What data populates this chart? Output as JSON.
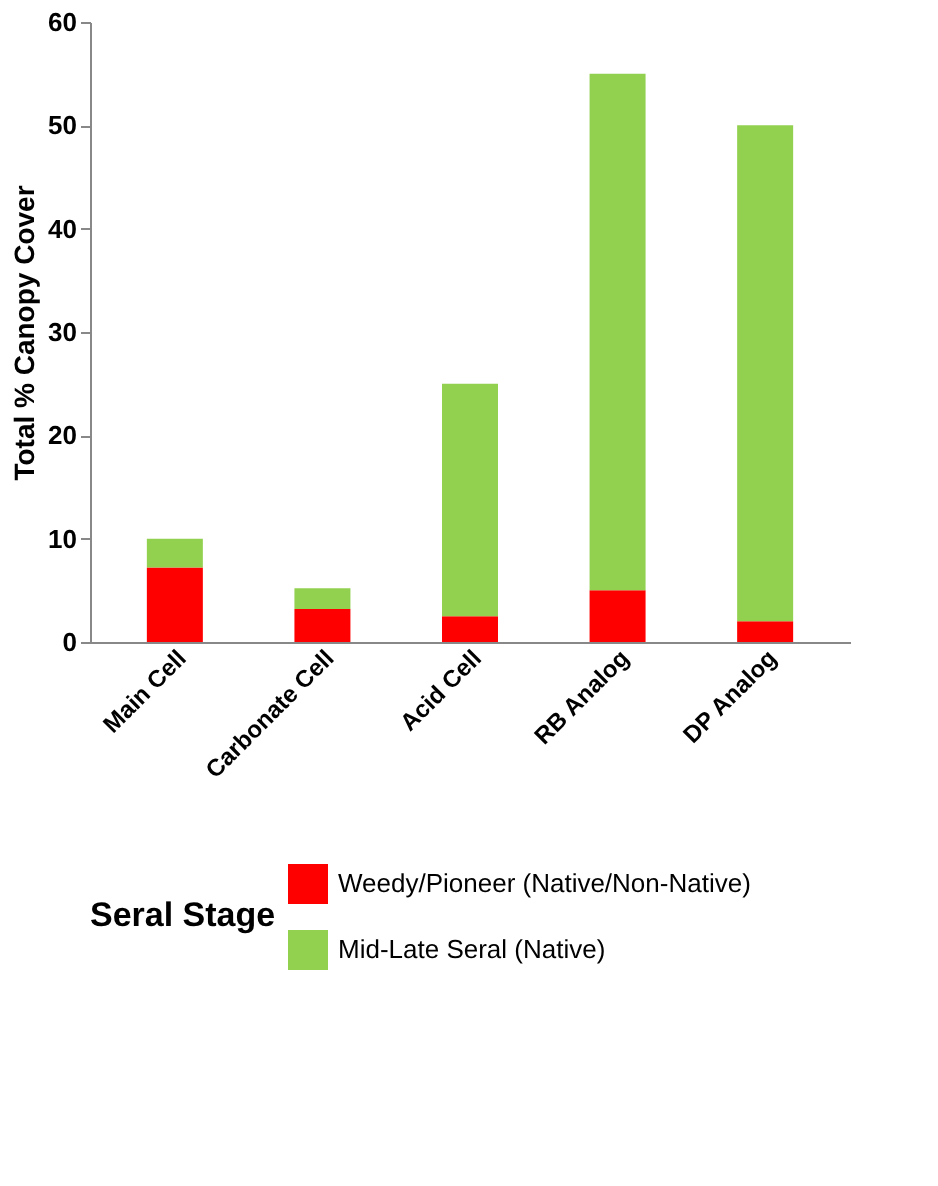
{
  "chart_data": {
    "type": "bar",
    "stacked": true,
    "categories": [
      "Main Cell",
      "Carbonate Cell",
      "Acid Cell",
      "RB Analog",
      "DP Analog"
    ],
    "series": [
      {
        "name": "Weedy/Pioneer (Native/Non-Native)",
        "color": "#ff0000",
        "values": [
          7.2,
          3.2,
          2.5,
          5,
          2
        ]
      },
      {
        "name": "Mid-Late Seral (Native)",
        "color": "#92d050",
        "values": [
          2.8,
          2,
          22.5,
          50,
          48
        ]
      }
    ],
    "ylabel": "Total % Canopy Cover",
    "legend_title": "Seral Stage",
    "ylim": [
      0,
      60
    ],
    "yticks": [
      0,
      10,
      20,
      30,
      40,
      50,
      60
    ],
    "grid": false,
    "legend": "bottom"
  }
}
